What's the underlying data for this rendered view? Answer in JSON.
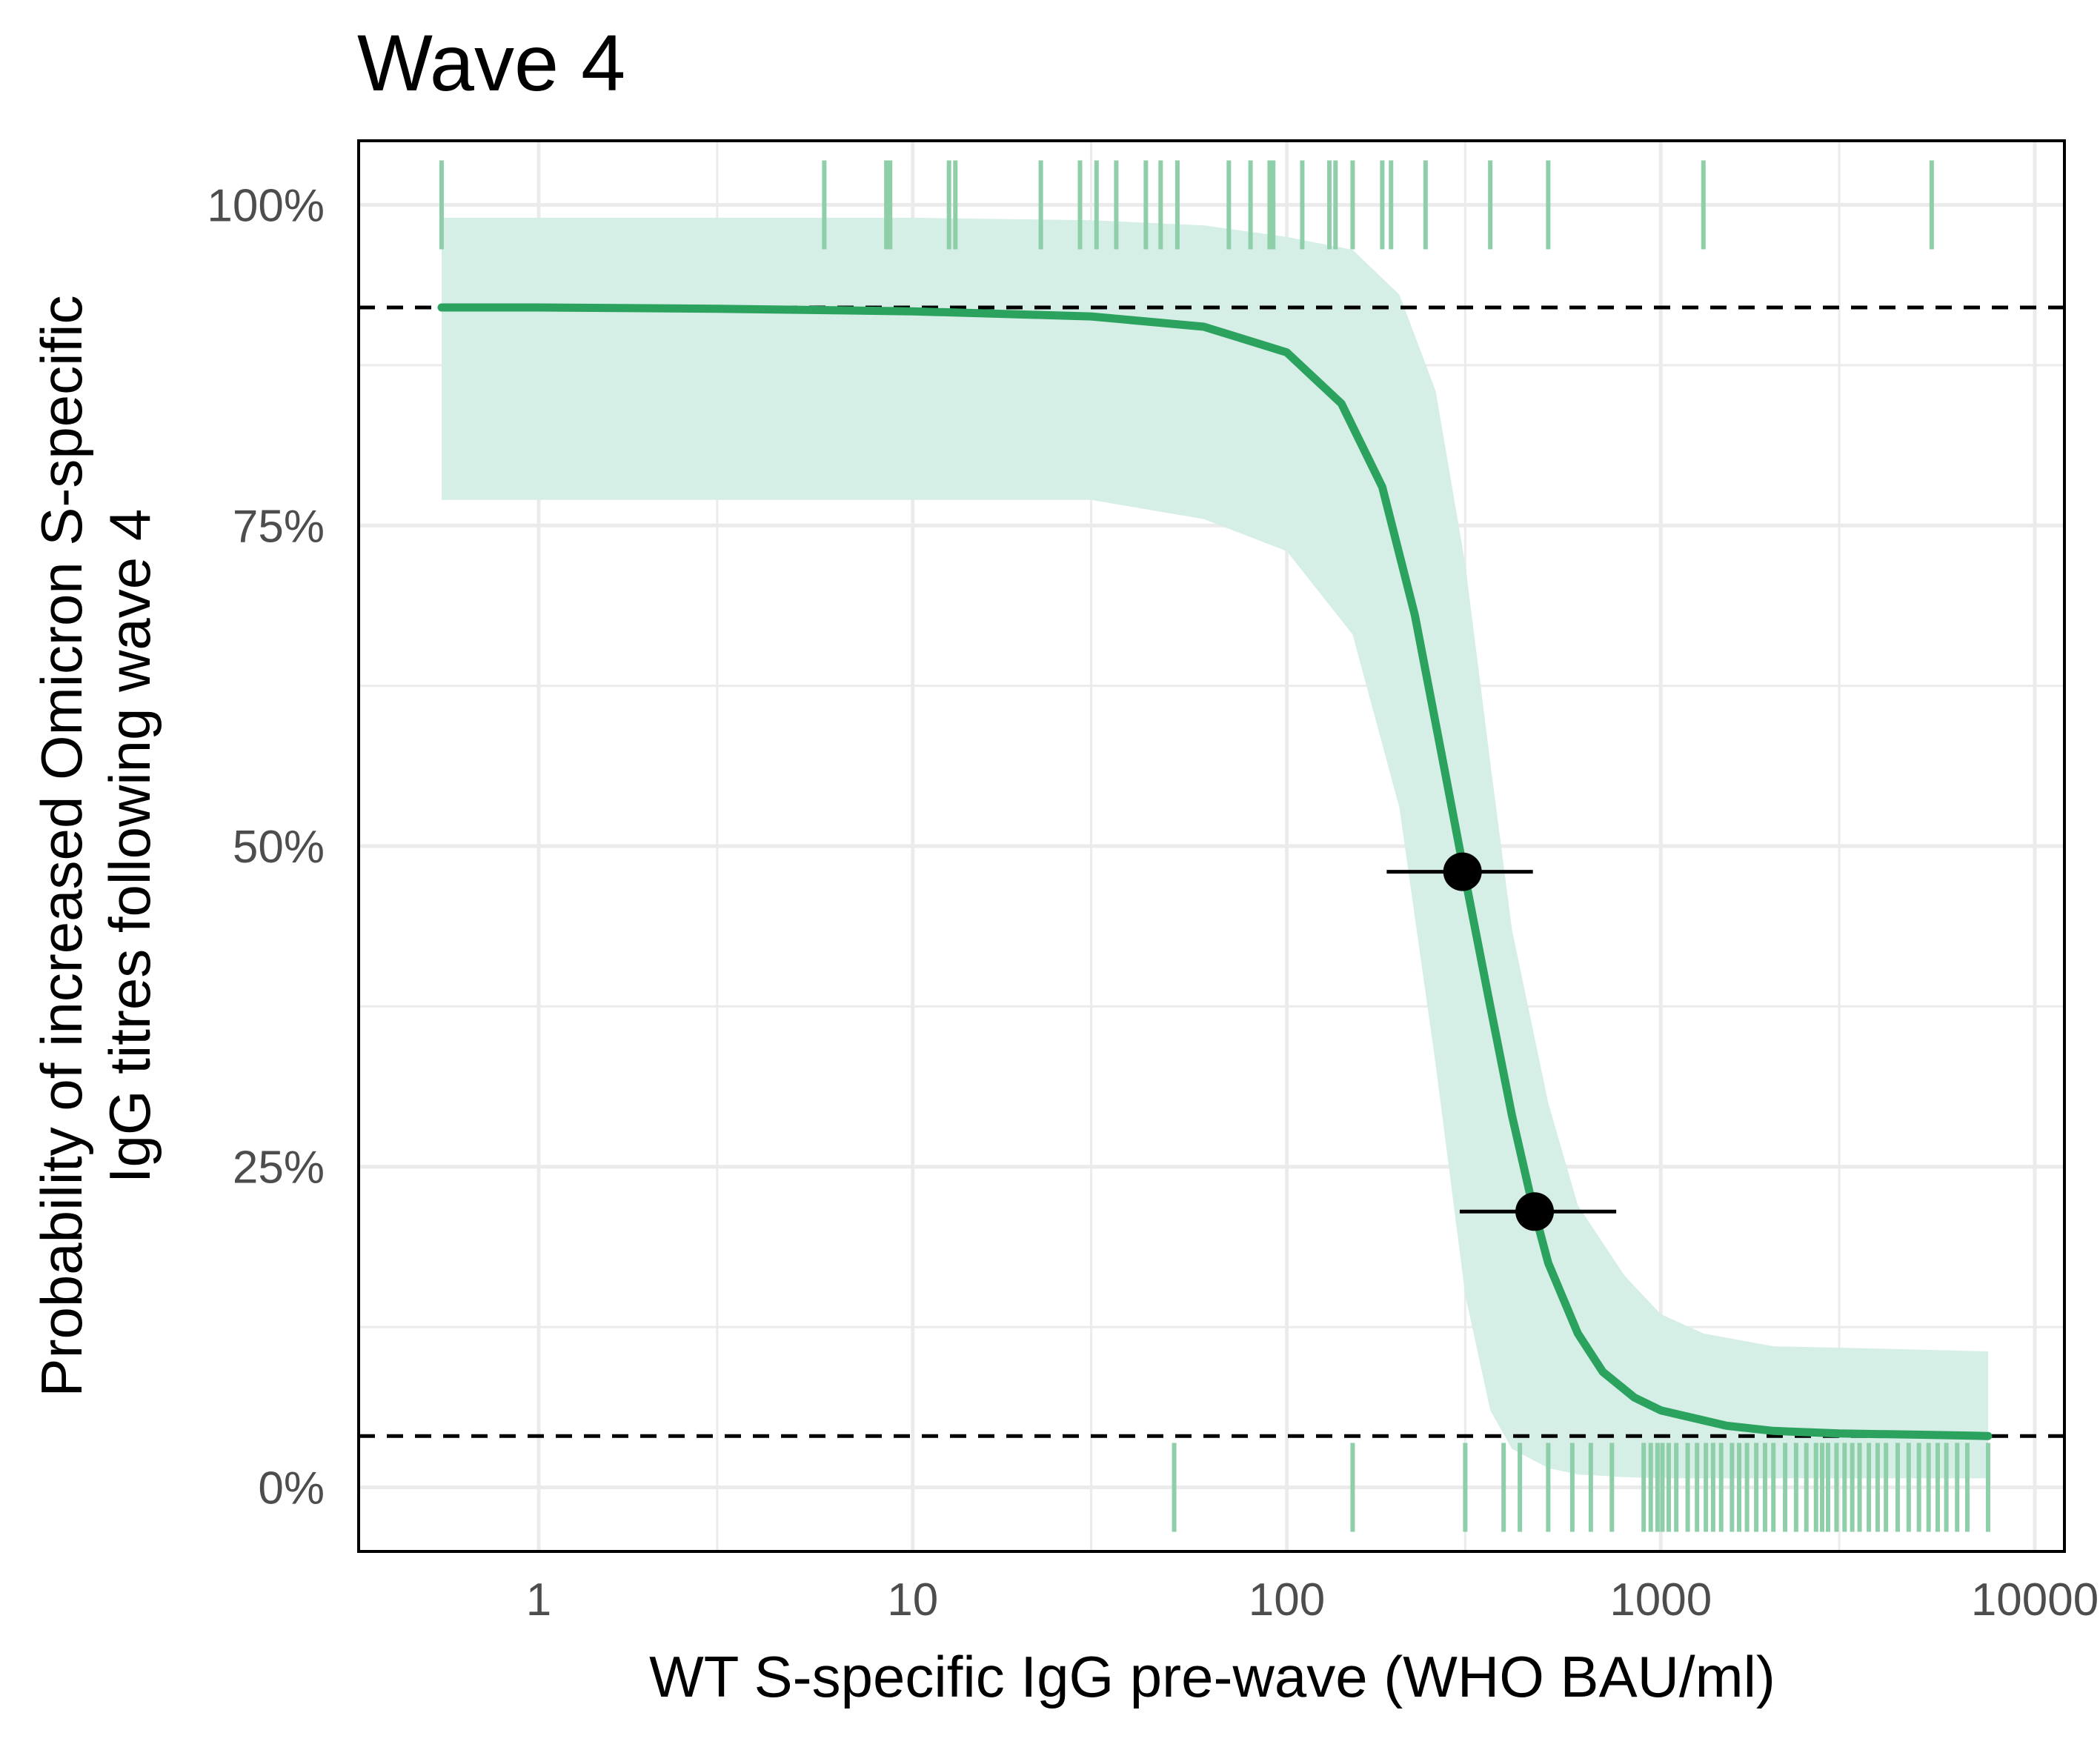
{
  "chart_data": {
    "type": "line",
    "title": "Wave 4",
    "xlabel": "WT S-specific IgG pre-wave (WHO BAU/ml)",
    "ylabel_lines": [
      "Probability of increased Omicron S-specific",
      "IgG titres following wave 4"
    ],
    "x_scale": "log10",
    "xlim": [
      0.33,
      12000
    ],
    "ylim": [
      -0.05,
      1.05
    ],
    "x_ticks": [
      1,
      10,
      100,
      1000,
      10000
    ],
    "x_tick_labels": [
      "1",
      "10",
      "100",
      "1000",
      "10000"
    ],
    "y_ticks": [
      0,
      0.25,
      0.5,
      0.75,
      1.0
    ],
    "y_tick_labels": [
      "0%",
      "25%",
      "50%",
      "75%",
      "100%"
    ],
    "grid": true,
    "colors": {
      "curve": "#2ca25f",
      "ribbon": "#d5eee6",
      "rug": "#8ecfa9",
      "point": "#000000",
      "reference_line": "#000000"
    },
    "reference_lines": [
      0.92,
      0.04
    ],
    "fitted_curve": {
      "x": [
        0.55,
        1,
        3,
        10,
        30,
        60,
        100,
        140,
        180,
        220,
        260,
        300,
        350,
        400,
        450,
        500,
        600,
        700,
        850,
        1000,
        1500,
        2000,
        3000,
        5000,
        7500
      ],
      "y": [
        0.92,
        0.92,
        0.919,
        0.917,
        0.913,
        0.905,
        0.885,
        0.845,
        0.78,
        0.68,
        0.57,
        0.475,
        0.375,
        0.29,
        0.225,
        0.175,
        0.12,
        0.09,
        0.07,
        0.06,
        0.048,
        0.044,
        0.042,
        0.041,
        0.04
      ]
    },
    "confidence_band": {
      "x": [
        0.55,
        10,
        30,
        60,
        100,
        150,
        200,
        250,
        300,
        350,
        400,
        500,
        600,
        800,
        1000,
        1300,
        2000,
        4000,
        7500
      ],
      "lower": [
        0.77,
        0.77,
        0.77,
        0.755,
        0.73,
        0.665,
        0.53,
        0.33,
        0.15,
        0.06,
        0.03,
        0.015,
        0.01,
        0.008,
        0.007,
        0.007,
        0.007,
        0.007,
        0.007
      ],
      "upper": [
        0.99,
        0.99,
        0.988,
        0.984,
        0.975,
        0.965,
        0.93,
        0.855,
        0.72,
        0.565,
        0.435,
        0.3,
        0.22,
        0.165,
        0.135,
        0.12,
        0.11,
        0.108,
        0.106
      ]
    },
    "points": [
      {
        "x": 295,
        "y": 0.48,
        "xmin": 185,
        "xmax": 455
      },
      {
        "x": 460,
        "y": 0.215,
        "xmin": 290,
        "xmax": 760
      }
    ],
    "rug_top_x": [
      0.55,
      5.8,
      8.5,
      8.7,
      12.5,
      13,
      22,
      28,
      31,
      35,
      42,
      46,
      51,
      70,
      80,
      90,
      92,
      110,
      130,
      135,
      150,
      180,
      190,
      235,
      350,
      500,
      1300,
      5300
    ],
    "rug_bottom_x": [
      50,
      150,
      300,
      380,
      420,
      500,
      580,
      650,
      740,
      900,
      940,
      980,
      1010,
      1050,
      1100,
      1180,
      1250,
      1320,
      1380,
      1450,
      1550,
      1620,
      1700,
      1800,
      1900,
      2000,
      2150,
      2300,
      2450,
      2600,
      2700,
      2800,
      2950,
      3100,
      3250,
      3400,
      3600,
      3800,
      4000,
      4300,
      4600,
      4900,
      5200,
      5500,
      5800,
      6200,
      6600,
      7500
    ]
  }
}
